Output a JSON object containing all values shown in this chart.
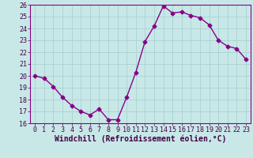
{
  "x": [
    0,
    1,
    2,
    3,
    4,
    5,
    6,
    7,
    8,
    9,
    10,
    11,
    12,
    13,
    14,
    15,
    16,
    17,
    18,
    19,
    20,
    21,
    22,
    23
  ],
  "y": [
    20.0,
    19.8,
    19.1,
    18.2,
    17.5,
    17.0,
    16.7,
    17.2,
    16.3,
    16.3,
    18.2,
    20.3,
    22.9,
    24.2,
    25.9,
    25.3,
    25.4,
    25.1,
    24.9,
    24.3,
    23.0,
    22.5,
    22.3,
    21.4
  ],
  "line_color": "#880088",
  "marker": "D",
  "marker_size": 2.5,
  "background_color": "#c8e8e8",
  "grid_color": "#aed4d4",
  "xlabel": "Windchill (Refroidissement éolien,°C)",
  "xlabel_fontsize": 7.0,
  "ylim": [
    16,
    26
  ],
  "xlim": [
    -0.5,
    23.5
  ],
  "yticks": [
    16,
    17,
    18,
    19,
    20,
    21,
    22,
    23,
    24,
    25,
    26
  ],
  "xticks": [
    0,
    1,
    2,
    3,
    4,
    5,
    6,
    7,
    8,
    9,
    10,
    11,
    12,
    13,
    14,
    15,
    16,
    17,
    18,
    19,
    20,
    21,
    22,
    23
  ],
  "tick_fontsize": 6.0,
  "axis_color": "#440044",
  "spine_color": "#880088",
  "linewidth": 1.0
}
